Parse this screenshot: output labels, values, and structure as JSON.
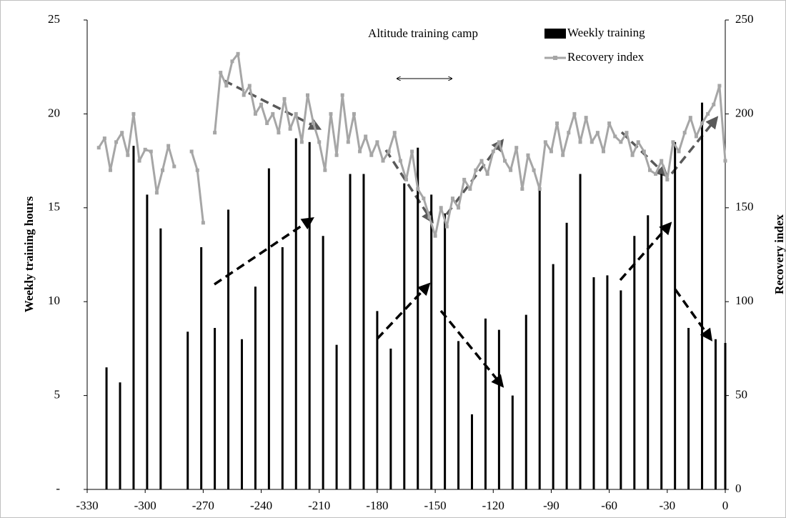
{
  "chart_data": {
    "type": "combo",
    "annotation": "Altitude training camp",
    "y_label": "Weekly training hours",
    "y2_label": "Recovery index",
    "xlim": [
      -330,
      0
    ],
    "xticks": [
      -330,
      -300,
      -270,
      -240,
      -210,
      -180,
      -150,
      -120,
      -90,
      -60,
      -30,
      0
    ],
    "ylim": [
      0,
      25
    ],
    "yticks": [
      {
        "value": 0,
        "label": "-"
      },
      5,
      10,
      15,
      20,
      25
    ],
    "y2lim": [
      0,
      250
    ],
    "y2ticks": [
      0,
      50,
      100,
      150,
      200,
      250
    ],
    "legend": "top-right",
    "series": [
      {
        "name": "Weekly training",
        "type": "bar",
        "color": "#000000",
        "x": [
          -320,
          -313,
          -306,
          -299,
          -292,
          -278,
          -271,
          -264,
          -257,
          -250,
          -243,
          -236,
          -229,
          -222,
          -215,
          -208,
          -201,
          -194,
          -187,
          -180,
          -173,
          -166,
          -159,
          -152,
          -145,
          -138,
          -131,
          -124,
          -117,
          -110,
          -103,
          -96,
          -89,
          -82,
          -75,
          -68,
          -61,
          -54,
          -47,
          -40,
          -33,
          -26,
          -19,
          -12,
          -5,
          0
        ],
        "values": [
          6.5,
          5.7,
          18.3,
          15.7,
          13.9,
          8.4,
          12.9,
          8.6,
          14.9,
          8.0,
          10.8,
          17.1,
          12.9,
          18.7,
          18.5,
          13.5,
          7.7,
          16.8,
          16.8,
          9.5,
          7.5,
          16.3,
          18.2,
          15.7,
          14.7,
          7.9,
          4.0,
          9.1,
          8.5,
          5.0,
          9.3,
          16.1,
          12.0,
          14.2,
          16.8,
          11.3,
          11.4,
          10.6,
          13.5,
          14.6,
          16.8,
          18.5,
          8.6,
          20.6,
          8.0,
          7.8
        ]
      },
      {
        "name": "Recovery index",
        "type": "line",
        "axis": "y2",
        "color": "#a6a6a6",
        "x": [
          -324,
          -321,
          -318,
          -315,
          -312,
          -309,
          -306,
          -303,
          -300,
          -297,
          -294,
          -291,
          -288,
          -285,
          -282,
          -279,
          -276,
          -273,
          -270,
          -267,
          -264,
          -261,
          -258,
          -255,
          -252,
          -249,
          -246,
          -243,
          -240,
          -237,
          -234,
          -231,
          -228,
          -225,
          -222,
          -219,
          -216,
          -213,
          -210,
          -207,
          -204,
          -201,
          -198,
          -195,
          -192,
          -189,
          -186,
          -183,
          -180,
          -177,
          -174,
          -171,
          -168,
          -165,
          -162,
          -159,
          -156,
          -153,
          -150,
          -147,
          -144,
          -141,
          -138,
          -135,
          -132,
          -129,
          -126,
          -123,
          -120,
          -117,
          -114,
          -111,
          -108,
          -105,
          -102,
          -99,
          -96,
          -93,
          -90,
          -87,
          -84,
          -81,
          -78,
          -75,
          -72,
          -69,
          -66,
          -63,
          -60,
          -57,
          -54,
          -51,
          -48,
          -45,
          -42,
          -39,
          -36,
          -33,
          -30,
          -27,
          -24,
          -21,
          -18,
          -15,
          -12,
          -9,
          -6,
          -3,
          0
        ],
        "values": [
          182,
          187,
          170,
          185,
          190,
          178,
          200,
          175,
          181,
          180,
          158,
          170,
          183,
          172,
          null,
          null,
          180,
          170,
          142,
          null,
          190,
          222,
          215,
          228,
          232,
          210,
          215,
          200,
          205,
          195,
          200,
          190,
          208,
          192,
          200,
          185,
          210,
          195,
          185,
          170,
          200,
          178,
          210,
          185,
          200,
          180,
          188,
          178,
          185,
          175,
          180,
          190,
          175,
          165,
          180,
          160,
          155,
          145,
          135,
          150,
          140,
          155,
          150,
          165,
          160,
          170,
          175,
          168,
          180,
          185,
          175,
          170,
          182,
          160,
          178,
          170,
          160,
          185,
          180,
          195,
          178,
          190,
          200,
          185,
          198,
          185,
          190,
          180,
          195,
          188,
          185,
          190,
          178,
          185,
          180,
          170,
          168,
          175,
          165,
          185,
          180,
          190,
          198,
          188,
          195,
          200,
          205,
          215,
          175
        ]
      }
    ]
  }
}
